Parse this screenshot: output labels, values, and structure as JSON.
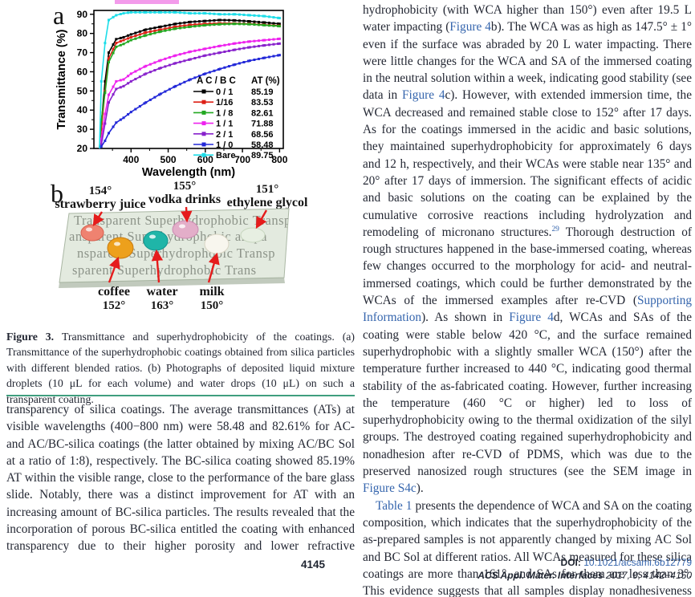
{
  "figure": {
    "panel_a_label": "a",
    "panel_b_label": "b",
    "chart_data": {
      "type": "line",
      "xlabel": "Wavelength (nm)",
      "ylabel": "Transmittance (%)",
      "xlim": [
        300,
        810
      ],
      "ylim": [
        20,
        92
      ],
      "xticks": [
        400,
        500,
        600,
        700,
        800
      ],
      "yticks": [
        20,
        30,
        40,
        50,
        60,
        70,
        80,
        90
      ],
      "legend_header_col1": "A C / B C",
      "legend_header_col2": "AT (%)",
      "x": [
        320,
        330,
        340,
        360,
        380,
        400,
        440,
        480,
        520,
        560,
        600,
        640,
        680,
        720,
        760,
        800
      ],
      "series": [
        {
          "name": "0 / 1",
          "at": "85.19",
          "color": "#000000",
          "values": [
            33,
            55,
            70,
            77,
            78,
            79.5,
            82,
            83.5,
            85,
            86,
            86.5,
            87,
            86.8,
            86.3,
            85.7,
            85
          ]
        },
        {
          "name": "1/16",
          "at": "83.53",
          "color": "#dd2016",
          "values": [
            30,
            50,
            67,
            75,
            76.5,
            78,
            80.5,
            82,
            83.5,
            84.5,
            85,
            85.3,
            85.2,
            85,
            84.5,
            84
          ]
        },
        {
          "name": "1 / 8",
          "at": "82.61",
          "color": "#22a821",
          "values": [
            35,
            49,
            65,
            73,
            74.5,
            76.5,
            79,
            81,
            82.5,
            83.5,
            84.3,
            84.8,
            85,
            84.8,
            84.3,
            83.8
          ]
        },
        {
          "name": "1 / 1",
          "at": "71.88",
          "color": "#ee22ee",
          "values": [
            25,
            38,
            48,
            55,
            56,
            59,
            63,
            66,
            68.5,
            70.5,
            72,
            73.5,
            74.8,
            75.8,
            76.5,
            77.2
          ]
        },
        {
          "name": "2 / 1",
          "at": "68.56",
          "color": "#8822cc",
          "values": [
            22,
            33,
            44,
            51,
            52.5,
            55,
            59,
            62,
            64.5,
            66.5,
            68.5,
            70,
            71.5,
            72.8,
            73.8,
            74.7
          ]
        },
        {
          "name": "1 / 0",
          "at": "58.48",
          "color": "#2228d8",
          "values": [
            21,
            24,
            28,
            33.5,
            36,
            39,
            44,
            48.5,
            52.5,
            56,
            59,
            61.5,
            63.8,
            65.8,
            67.3,
            68.7
          ]
        },
        {
          "name": "Bare",
          "at": "89.75",
          "color": "#1ddde8",
          "values": [
            55,
            75,
            87,
            89.5,
            90.5,
            91,
            91,
            91,
            91,
            90.5,
            90.5,
            90,
            90,
            89.5,
            89,
            88
          ]
        }
      ]
    },
    "photo": {
      "top_labels": [
        {
          "angle": "154°",
          "name": "strawberry juice"
        },
        {
          "angle": "155°",
          "name": "vodka drinks"
        },
        {
          "angle": "151°",
          "name": "ethylene glycol"
        }
      ],
      "bottom_labels": [
        {
          "name": "coffee",
          "angle": "152°"
        },
        {
          "name": "water",
          "angle": "163°"
        },
        {
          "name": "milk",
          "angle": "150°"
        }
      ],
      "glass_rows": [
        "Transparent Superhydrophobic   Transpa",
        "ansparent Superhydrophobic   anspa",
        "nsparent Superhydrophobic   Transp",
        "sparent Superhydrophobic   Trans"
      ],
      "droplets": [
        {
          "id": "strawberry-juice-droplet",
          "color": "#ef8270",
          "edge": "#d95f4e"
        },
        {
          "id": "coffee-droplet",
          "color": "#eda01c",
          "edge": "#c77a10"
        },
        {
          "id": "water-droplet",
          "color": "#1fb5a8",
          "edge": "#0f958f"
        },
        {
          "id": "vodka-droplet",
          "color": "#e3aec9",
          "edge": "#c98bb0"
        },
        {
          "id": "milk-droplet",
          "color": "#f8f6ee",
          "edge": "#d8d4c3"
        },
        {
          "id": "ethylene-glycol-droplet",
          "color": "#e7efe2",
          "edge": "#c7d6bf"
        }
      ],
      "arrow_color": "#e51c1c"
    },
    "caption": {
      "segments": [
        {
          "text": "Figure 3. ",
          "bold": true
        },
        {
          "text": "Transmittance and superhydrophobicity of the coatings. (a) Transmittance of the superhydrophobic coatings obtained from silica particles with different blended ratios. (b) Photographs of deposited liquid mixture droplets (10 μL for each volume) and water drops (10 μL) on such a transparent coating."
        }
      ]
    }
  },
  "left_column": {
    "body": "transparency of silica coatings. The average transmittances (ATs) at visible wavelengths (400−800 nm) were 58.48 and 82.61% for AC- and AC/BC-silica coatings (the latter obtained by mixing AC/BC Sol at a ratio of 1:8), respectively. The BC-silica coating showed 85.19% AT within the visible range, close to the performance of the bare glass slide. Notably, there was a distinct improvement for AT with an increasing amount of BC-silica particles. The results revealed that the incorporation of porous BC-silica entitled the coating with enhanced transparency due to their higher porosity and lower refractive"
  },
  "right_column": {
    "paragraphs": [
      {
        "indent": false,
        "fill_last": false,
        "segments": [
          {
            "text": "hydrophobicity (with WCA higher than 150°) even after 19.5 L water impacting ("
          },
          {
            "text": "Figure 4",
            "link": true
          },
          {
            "text": "b). The WCA was as high as 147.5° ± 1° even if the surface was abraded by 20 L water impacting. There were little changes for the WCA and SA of the immersed coating in the neutral solution within a week, indicating good stability (see data in "
          },
          {
            "text": "Figure 4",
            "link": true
          },
          {
            "text": "c). However, with extended immersion time, the WCA decreased and remained stable close to 152° after 17 days. As for the coatings immersed in the acidic and basic solutions, they maintained superhydrophobicity for approximately 6 days and 12 h, respectively, and their WCAs were stable near 135° and 20° after 17 days of immersion. The significant effects of acidic and basic solutions on the coating can be explained by the cumulative corrosive reactions including hydrolyzation and remodeling of micronano structures."
          },
          {
            "text": "29",
            "sup": true,
            "link": true
          },
          {
            "text": " Thorough destruction of rough structures happened in the base-immersed coating, whereas few changes occurred to the morphology for acid- and neutral-immersed coatings, which could be further demonstrated by the WCAs of the immersed examples after re-CVD ("
          },
          {
            "text": "Supporting Information",
            "link": true
          },
          {
            "text": "). As shown in "
          },
          {
            "text": "Figure 4",
            "link": true
          },
          {
            "text": "d, WCAs and SAs of the coating were stable below 420 °C, and the surface remained superhydrophobic with a slightly smaller WCA (150°) after the temperature further increased to 440 °C, indicating good thermal stability of the as-fabricated coating. However, further increasing the temperature (460 °C or higher) led to loss of superhydrophobicity owing to the thermal oxidization of the silyl groups. The destroyed coating regained superhydrophobicity and nonadhesion after re-CVD of PDMS, which was due to the preserved nanosized rough structures (see the SEM image in "
          },
          {
            "text": "Figure S4c",
            "link": true
          },
          {
            "text": ")."
          }
        ]
      },
      {
        "indent": true,
        "fill_last": true,
        "segments": [
          {
            "text": "Table 1",
            "link": true
          },
          {
            "text": " presents the dependence of WCA and SA on the coating composition, which indicates that the superhydrophobicity of the as-prepared samples is not apparently changed by mixing AC Sol and BC Sol at different ratios. All WCAs measured for these silica coatings are more than 161°, and SAs for them are less than 3°. This evidence suggests that all samples display nonadhesiveness and that the different"
          }
        ]
      }
    ]
  },
  "footer": {
    "page_number": "4145",
    "line1": {
      "segments": [
        {
          "text": "DOI: ",
          "bold": true
        },
        {
          "text": "10.1021/acsami.6b12779",
          "link": true
        }
      ]
    },
    "line2": {
      "segments": [
        {
          "text": "ACS Appl. Mater. Interfaces",
          "bold": true,
          "italic": true
        },
        {
          "text": " 2017, 9, 4142−4150",
          "italic": true
        }
      ]
    },
    "doi_link_color": "#1b76c2"
  },
  "colors": {
    "body_text": "#232733",
    "link_blue": "#3565ad",
    "separator_green": "#3f9e7e",
    "arrow_red": "#e51c1c"
  }
}
